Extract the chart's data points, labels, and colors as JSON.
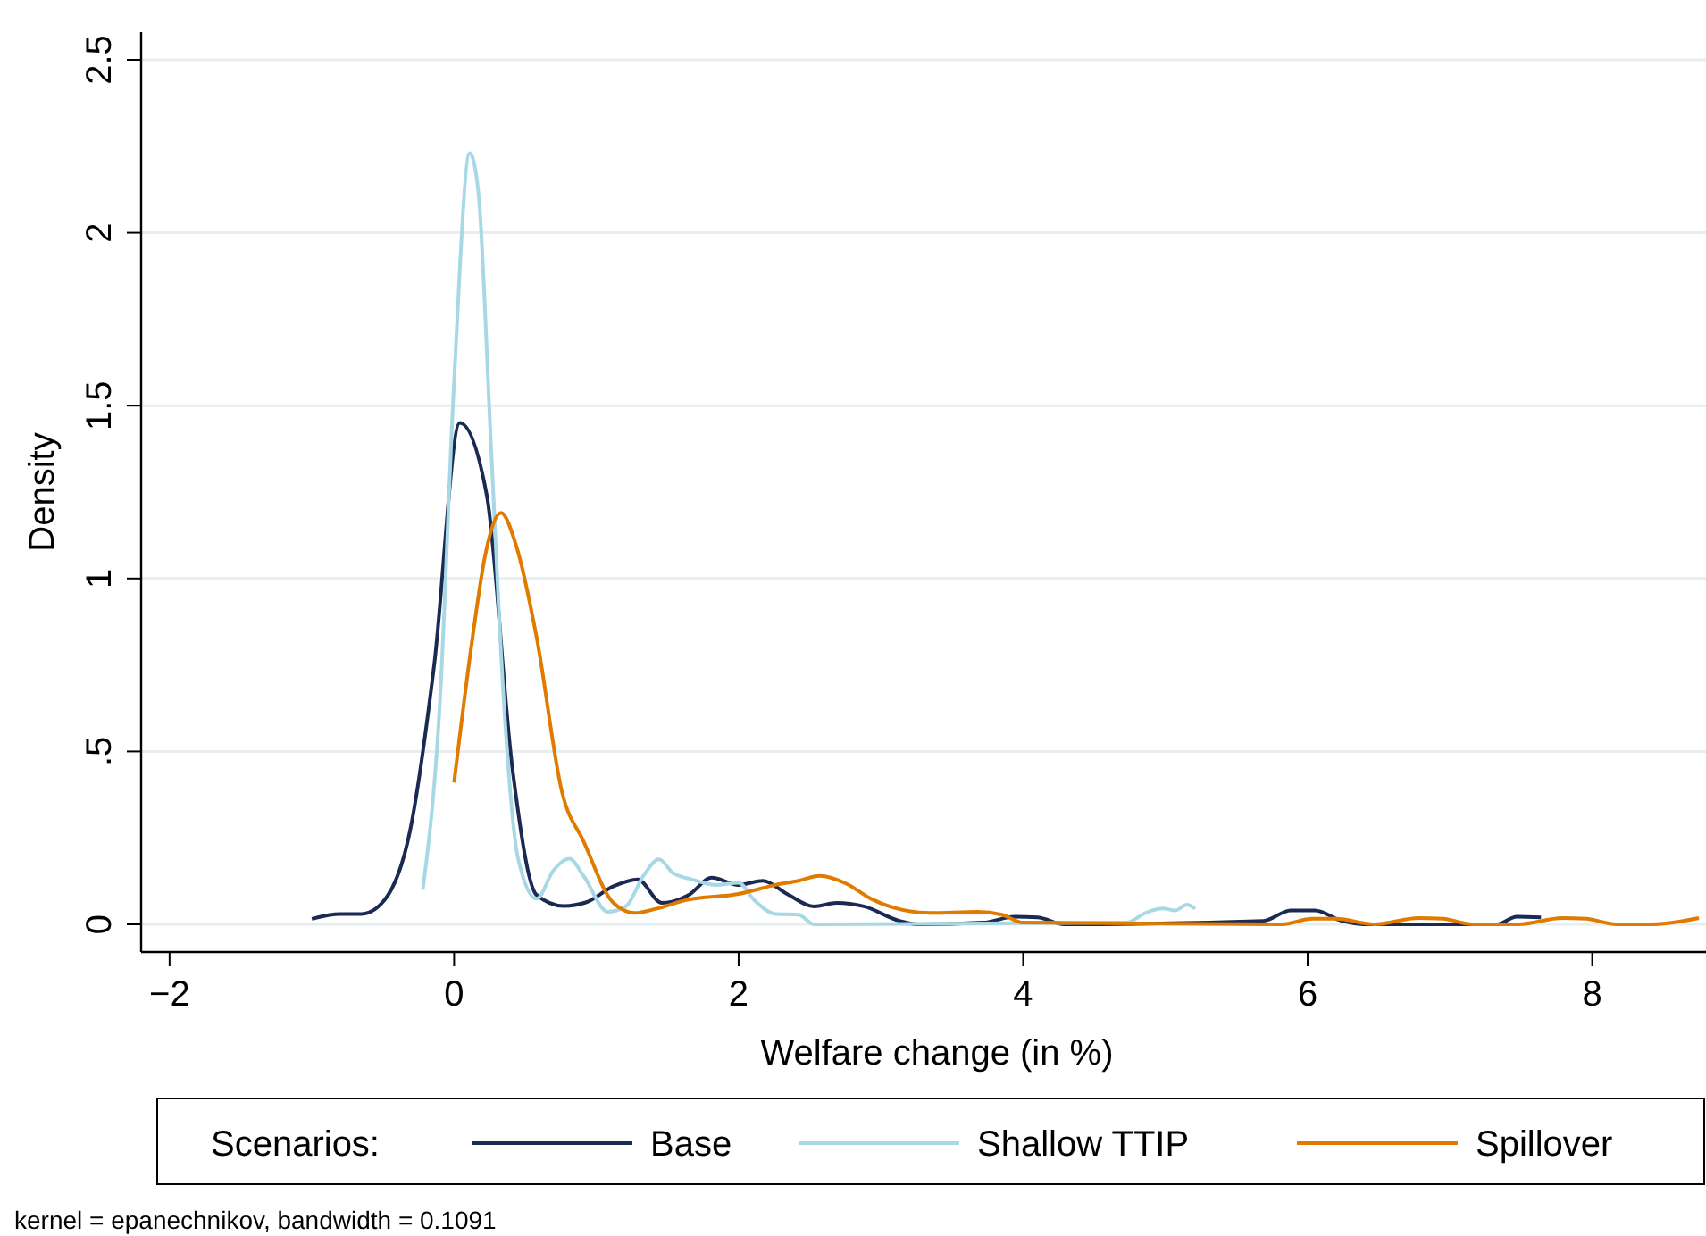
{
  "chart_data": {
    "type": "line",
    "xlabel": "Welfare change (in %)",
    "ylabel": "Density",
    "legend_title": "Scenarios:",
    "legend": "bottom",
    "grid": "y",
    "line_style": "solid",
    "xlim": [
      -2.2,
      8.8
    ],
    "xticks": [
      {
        "value": -2,
        "label": "−2"
      },
      0,
      2,
      4,
      6,
      8
    ],
    "ylim": [
      -0.08,
      2.58
    ],
    "yticks": [
      0,
      {
        "value": 0.5,
        "label": ".5"
      },
      1,
      1.5,
      2,
      2.5
    ],
    "annotations": [
      "kernel = epanechnikov, bandwidth = 0.1091"
    ],
    "series": [
      {
        "name": "Base",
        "color": "#1a2a52",
        "x": [
          -1.0,
          -0.8,
          -0.65,
          -0.49,
          -0.31,
          -0.14,
          0.04,
          0.23,
          0.41,
          0.58,
          0.77,
          0.93,
          1.12,
          1.29,
          1.46,
          1.65,
          1.81,
          2.0,
          2.17,
          2.34,
          2.53,
          2.69,
          2.88,
          3.13,
          3.26,
          3.72,
          3.94,
          4.1,
          4.29,
          5.69,
          5.88,
          6.05,
          6.24,
          6.4,
          7.12,
          7.33,
          7.47,
          7.64
        ],
        "values": [
          0.016,
          0.03,
          0.03,
          0.07,
          0.27,
          0.75,
          1.45,
          1.24,
          0.45,
          0.085,
          0.053,
          0.064,
          0.11,
          0.13,
          0.062,
          0.085,
          0.135,
          0.114,
          0.126,
          0.088,
          0.052,
          0.062,
          0.052,
          0.01,
          0,
          0.005,
          0.022,
          0.02,
          0,
          0.01,
          0.04,
          0.04,
          0.01,
          0,
          0,
          0,
          0.022,
          0.02
        ]
      },
      {
        "name": "Shallow TTIP",
        "color": "#a8d8e6",
        "x": [
          -0.22,
          -0.1,
          0,
          0.11,
          0.17,
          0.26,
          0.35,
          0.45,
          0.58,
          0.7,
          0.81,
          0.91,
          1.08,
          1.21,
          1.33,
          1.44,
          1.54,
          1.67,
          1.84,
          2.0,
          2.11,
          2.26,
          2.42,
          2.53,
          4.73,
          4.86,
          4.98,
          5.07,
          5.15,
          5.21
        ],
        "values": [
          0.1,
          0.64,
          1.57,
          2.23,
          2.12,
          1.38,
          0.64,
          0.19,
          0.074,
          0.157,
          0.19,
          0.14,
          0.036,
          0.053,
          0.14,
          0.188,
          0.148,
          0.13,
          0.114,
          0.12,
          0.07,
          0.03,
          0.028,
          0,
          0.005,
          0.033,
          0.046,
          0.04,
          0.057,
          0.045
        ]
      },
      {
        "name": "Spillover",
        "color": "#e07b00",
        "x": [
          0,
          0.13,
          0.22,
          0.33,
          0.44,
          0.58,
          0.76,
          0.91,
          1.12,
          1.27,
          1.42,
          1.63,
          2.0,
          2.26,
          2.42,
          2.57,
          2.76,
          2.93,
          3.09,
          3.35,
          3.68,
          3.85,
          4.0,
          5.82,
          6.03,
          6.2,
          6.47,
          6.78,
          6.95,
          7.16,
          7.48,
          7.79,
          7.96,
          8.17,
          8.42,
          8.75
        ],
        "values": [
          0.41,
          0.83,
          1.07,
          1.19,
          1.09,
          0.83,
          0.38,
          0.24,
          0.062,
          0.033,
          0.045,
          0.07,
          0.088,
          0.114,
          0.126,
          0.14,
          0.117,
          0.074,
          0.048,
          0.033,
          0.036,
          0.028,
          0.005,
          0,
          0.016,
          0.016,
          0,
          0.018,
          0.016,
          0,
          0,
          0.018,
          0.016,
          0,
          0,
          0.018
        ]
      }
    ]
  }
}
